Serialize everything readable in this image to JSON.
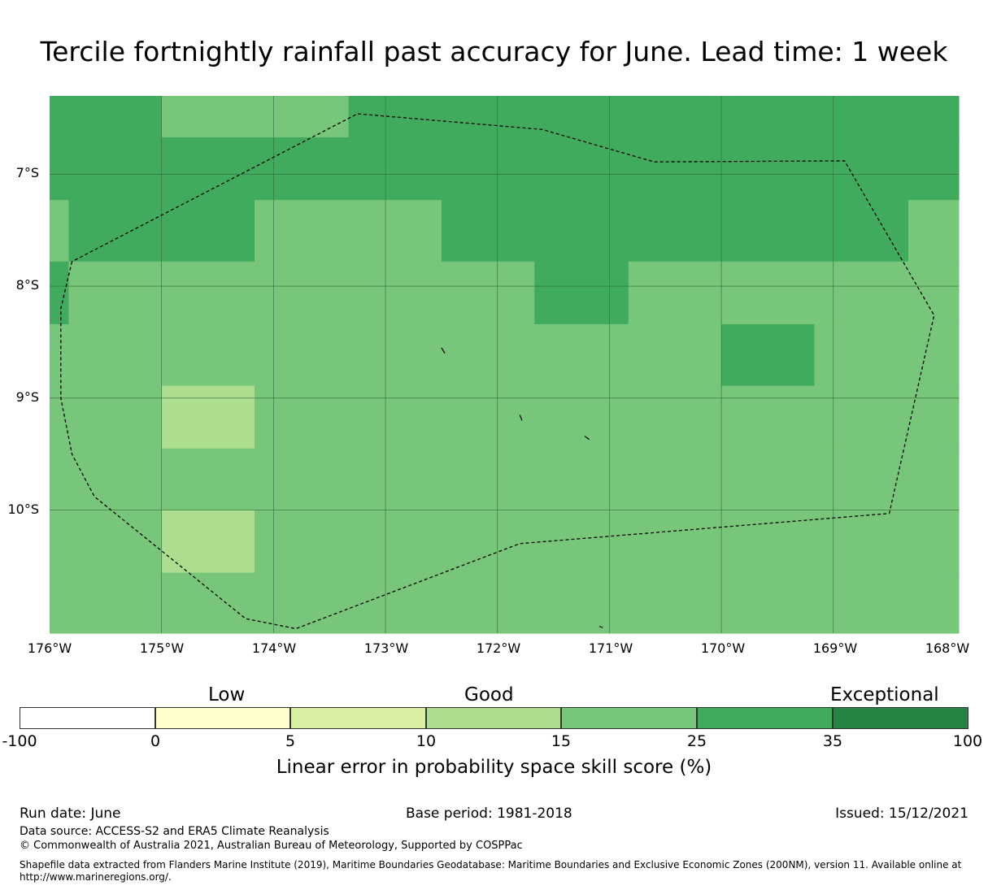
{
  "title": "Tercile fortnightly rainfall past accuracy for June. Lead time: 1 week",
  "map": {
    "lon_labels": [
      "176°W",
      "175°W",
      "174°W",
      "173°W",
      "172°W",
      "171°W",
      "170°W",
      "169°W",
      "168°W"
    ],
    "lat_labels": [
      "7°S",
      "8°S",
      "9°S",
      "10°S"
    ],
    "lon_range": [
      -176,
      -167.88
    ],
    "lat_range": [
      -6.3,
      -11.1
    ],
    "colors": {
      "c15_25": "#78c679",
      "c25_35": "#41ab5d",
      "c10_15": "#addd8e"
    },
    "cell_rows": [
      {
        "lat": [
          -6.3,
          -6.67
        ],
        "cells": [
          [
            "c25_35",
            -176,
            -175
          ],
          [
            "c15_25",
            -175,
            -173.33
          ],
          [
            "c25_35",
            -173.33,
            -167.88
          ]
        ]
      },
      {
        "lat": [
          -6.67,
          -7.23
        ],
        "cells": [
          [
            "c25_35",
            -176,
            -167.88
          ]
        ]
      },
      {
        "lat": [
          -7.23,
          -7.78
        ],
        "cells": [
          [
            "c15_25",
            -176,
            -175.83
          ],
          [
            "c25_35",
            -175.83,
            -174.17
          ],
          [
            "c15_25",
            -174.17,
            -172.5
          ],
          [
            "c25_35",
            -172.5,
            -168.33
          ],
          [
            "c15_25",
            -168.33,
            -167.88
          ]
        ]
      },
      {
        "lat": [
          -7.78,
          -8.34
        ],
        "cells": [
          [
            "c25_35",
            -176,
            -175.83
          ],
          [
            "c15_25",
            -175.83,
            -171.67
          ],
          [
            "c25_35",
            -171.67,
            -170.83
          ],
          [
            "c15_25",
            -170.83,
            -167.88
          ]
        ]
      },
      {
        "lat": [
          -8.34,
          -8.89
        ],
        "cells": [
          [
            "c15_25",
            -176,
            -170
          ],
          [
            "c25_35",
            -170,
            -169.17
          ],
          [
            "c15_25",
            -169.17,
            -167.88
          ]
        ]
      },
      {
        "lat": [
          -8.89,
          -9.45
        ],
        "cells": [
          [
            "c15_25",
            -176,
            -175
          ],
          [
            "c10_15",
            -175,
            -174.17
          ],
          [
            "c15_25",
            -174.17,
            -167.88
          ]
        ]
      },
      {
        "lat": [
          -9.45,
          -10.0
        ],
        "cells": [
          [
            "c15_25",
            -176,
            -167.88
          ]
        ]
      },
      {
        "lat": [
          -10.0,
          -10.56
        ],
        "cells": [
          [
            "c15_25",
            -176,
            -175
          ],
          [
            "c10_15",
            -175,
            -174.17
          ],
          [
            "c15_25",
            -174.17,
            -167.88
          ]
        ]
      },
      {
        "lat": [
          -10.56,
          -11.1
        ],
        "cells": [
          [
            "c15_25",
            -176,
            -167.88
          ]
        ]
      }
    ],
    "eez_boundary": [
      [
        -175.8,
        -7.78
      ],
      [
        -175.9,
        -8.2
      ],
      [
        -175.9,
        -9.0
      ],
      [
        -175.8,
        -9.5
      ],
      [
        -175.6,
        -9.88
      ],
      [
        -174.25,
        -10.97
      ],
      [
        -173.8,
        -11.06
      ],
      [
        -173.25,
        -6.46
      ],
      [
        -171.6,
        -6.6
      ],
      [
        -170.6,
        -6.89
      ],
      [
        -168.9,
        -6.88
      ],
      [
        -168.1,
        -8.26
      ],
      [
        -168.5,
        -10.03
      ],
      [
        -171.8,
        -10.3
      ],
      [
        -173.8,
        -11.06
      ]
    ],
    "islands": [
      [
        [
          -172.5,
          -8.55
        ],
        [
          -172.47,
          -8.6
        ]
      ],
      [
        [
          -171.8,
          -9.15
        ],
        [
          -171.78,
          -9.2
        ]
      ],
      [
        [
          -171.22,
          -9.34
        ],
        [
          -171.18,
          -9.37
        ]
      ],
      [
        [
          -171.09,
          -11.04
        ],
        [
          -171.06,
          -11.05
        ]
      ]
    ]
  },
  "colorbar": {
    "categories": [
      "Low",
      "Good",
      "Exceptional"
    ],
    "bins": [
      {
        "from": "-100",
        "to": "0",
        "color": "#ffffff"
      },
      {
        "from": "0",
        "to": "5",
        "color": "#ffffcc"
      },
      {
        "from": "5",
        "to": "10",
        "color": "#d9f0a3"
      },
      {
        "from": "10",
        "to": "15",
        "color": "#addd8e"
      },
      {
        "from": "15",
        "to": "25",
        "color": "#78c679"
      },
      {
        "from": "25",
        "to": "35",
        "color": "#41ab5d"
      },
      {
        "from": "35",
        "to": "100",
        "color": "#238443"
      }
    ],
    "ticks": [
      "-100",
      "0",
      "5",
      "10",
      "15",
      "25",
      "35",
      "100"
    ],
    "label": "Linear error in probability space skill score (%)"
  },
  "footer": {
    "run_date": "Run date: June",
    "base_period": "Base period: 1981-2018",
    "issued": "Issued: 15/12/2021",
    "data_source": "Data source: ACCESS-S2 and ERA5 Climate Reanalysis",
    "copyright": "© Commonwealth of Australia 2021, Australian Bureau of Meteorology, Supported by COSPPac",
    "shapefile_line1": "Shapefile data extracted from Flanders Marine Institute (2019), Maritime Boundaries Geodatabase: Maritime Boundaries and Exclusive Economic Zones (200NM), version 11. Available online at",
    "shapefile_line2": "http://www.marineregions.org/."
  }
}
